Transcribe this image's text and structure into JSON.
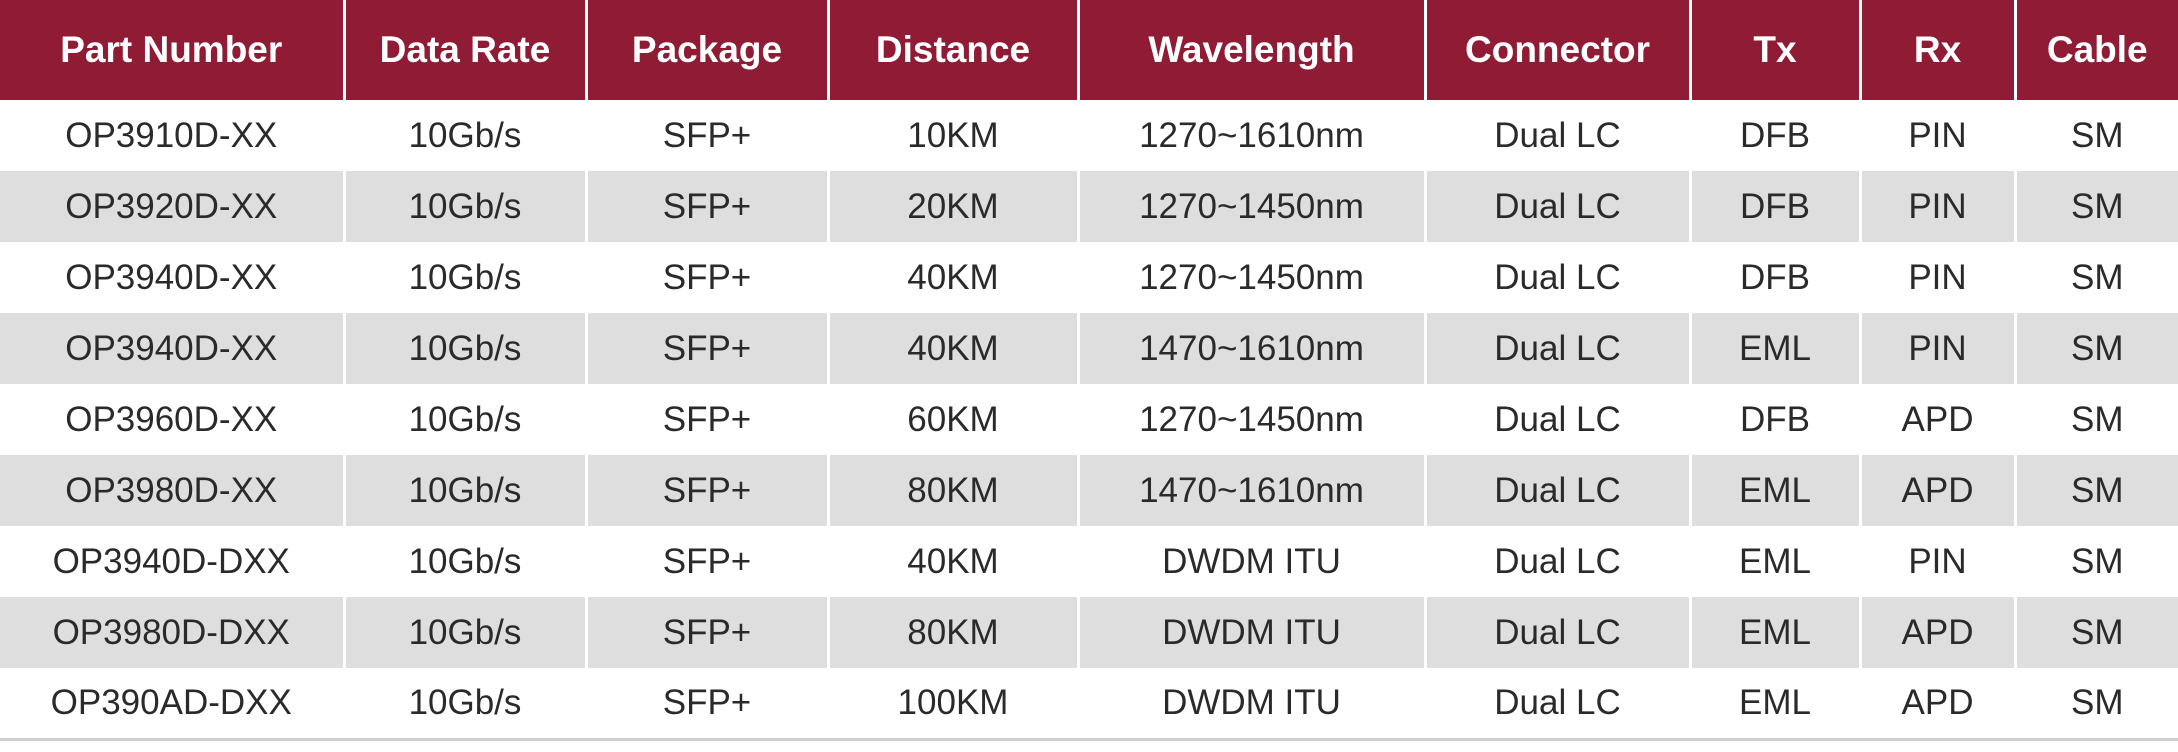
{
  "table": {
    "header": [
      "Part Number",
      "Data Rate",
      "Package",
      "Distance",
      "Wavelength",
      "Connector",
      "Tx",
      "Rx",
      "Cable"
    ],
    "rows": [
      [
        "OP3910D-XX",
        "10Gb/s",
        "SFP+",
        "10KM",
        "1270~1610nm",
        "Dual LC",
        "DFB",
        "PIN",
        "SM"
      ],
      [
        "OP3920D-XX",
        "10Gb/s",
        "SFP+",
        "20KM",
        "1270~1450nm",
        "Dual LC",
        "DFB",
        "PIN",
        "SM"
      ],
      [
        "OP3940D-XX",
        "10Gb/s",
        "SFP+",
        "40KM",
        "1270~1450nm",
        "Dual LC",
        "DFB",
        "PIN",
        "SM"
      ],
      [
        "OP3940D-XX",
        "10Gb/s",
        "SFP+",
        "40KM",
        "1470~1610nm",
        "Dual LC",
        "EML",
        "PIN",
        "SM"
      ],
      [
        "OP3960D-XX",
        "10Gb/s",
        "SFP+",
        "60KM",
        "1270~1450nm",
        "Dual LC",
        "DFB",
        "APD",
        "SM"
      ],
      [
        "OP3980D-XX",
        "10Gb/s",
        "SFP+",
        "80KM",
        "1470~1610nm",
        "Dual LC",
        "EML",
        "APD",
        "SM"
      ],
      [
        "OP3940D-DXX",
        "10Gb/s",
        "SFP+",
        "40KM",
        "DWDM ITU",
        "Dual LC",
        "EML",
        "PIN",
        "SM"
      ],
      [
        "OP3980D-DXX",
        "10Gb/s",
        "SFP+",
        "80KM",
        "DWDM ITU",
        "Dual LC",
        "EML",
        "APD",
        "SM"
      ],
      [
        "OP390AD-DXX",
        "10Gb/s",
        "SFP+",
        "100KM",
        "DWDM ITU",
        "Dual LC",
        "EML",
        "APD",
        "SM"
      ]
    ]
  }
}
